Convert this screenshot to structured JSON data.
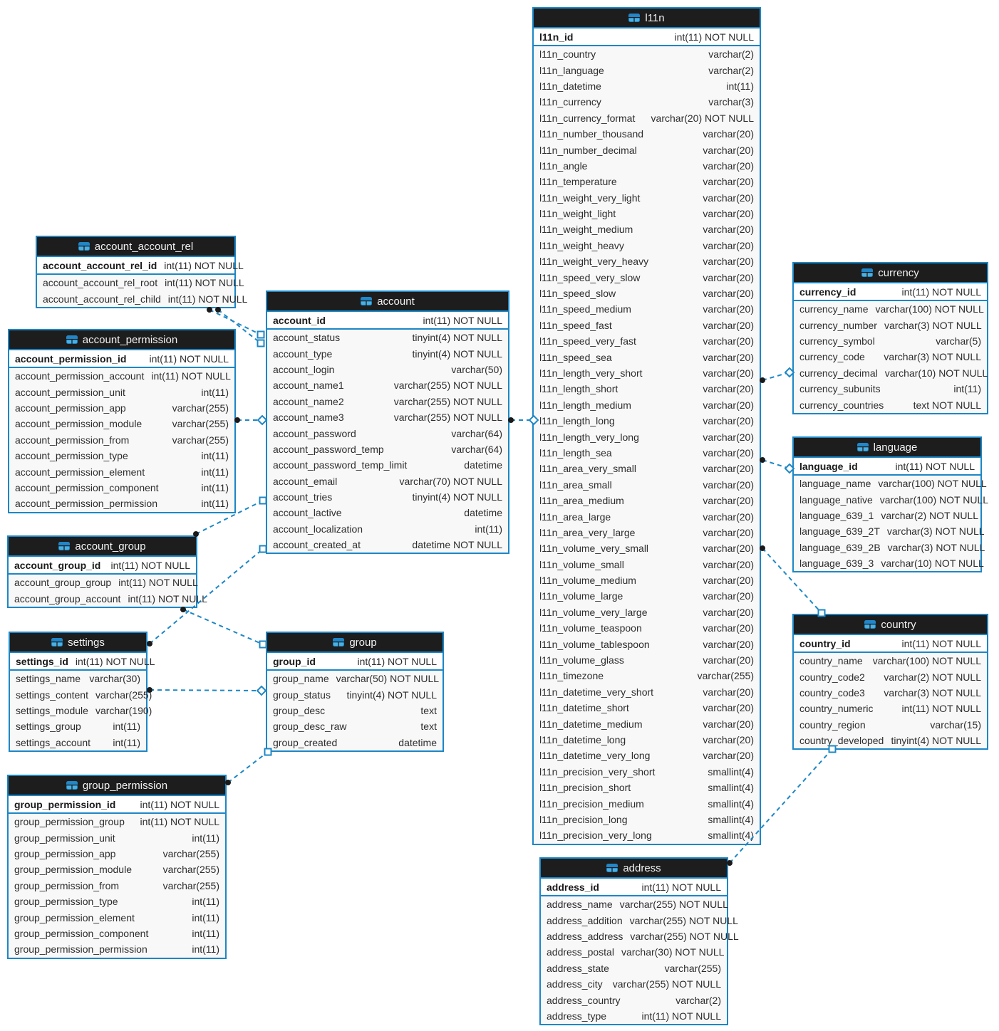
{
  "diagram": {
    "colors": {
      "accent": "#1c87c6",
      "header_bg": "#1d1d1d",
      "body_bg": "#f8f8f8",
      "pk_bg": "#ffffff",
      "text": "#2d2d2d"
    },
    "tables": [
      {
        "name": "account_account_rel",
        "pk": [
          {
            "name": "account_account_rel_id",
            "type": "int(11) NOT NULL"
          }
        ],
        "fields": [
          {
            "name": "account_account_rel_root",
            "type": "int(11) NOT NULL"
          },
          {
            "name": "account_account_rel_child",
            "type": "int(11) NOT NULL"
          }
        ]
      },
      {
        "name": "account_permission",
        "pk": [
          {
            "name": "account_permission_id",
            "type": "int(11) NOT NULL"
          }
        ],
        "fields": [
          {
            "name": "account_permission_account",
            "type": "int(11) NOT NULL"
          },
          {
            "name": "account_permission_unit",
            "type": "int(11)"
          },
          {
            "name": "account_permission_app",
            "type": "varchar(255)"
          },
          {
            "name": "account_permission_module",
            "type": "varchar(255)"
          },
          {
            "name": "account_permission_from",
            "type": "varchar(255)"
          },
          {
            "name": "account_permission_type",
            "type": "int(11)"
          },
          {
            "name": "account_permission_element",
            "type": "int(11)"
          },
          {
            "name": "account_permission_component",
            "type": "int(11)"
          },
          {
            "name": "account_permission_permission",
            "type": "int(11)"
          }
        ]
      },
      {
        "name": "account_group",
        "pk": [
          {
            "name": "account_group_id",
            "type": "int(11) NOT NULL"
          }
        ],
        "fields": [
          {
            "name": "account_group_group",
            "type": "int(11) NOT NULL"
          },
          {
            "name": "account_group_account",
            "type": "int(11) NOT NULL"
          }
        ]
      },
      {
        "name": "settings",
        "pk": [
          {
            "name": "settings_id",
            "type": "int(11) NOT NULL"
          }
        ],
        "fields": [
          {
            "name": "settings_name",
            "type": "varchar(30)"
          },
          {
            "name": "settings_content",
            "type": "varchar(255)"
          },
          {
            "name": "settings_module",
            "type": "varchar(190)"
          },
          {
            "name": "settings_group",
            "type": "int(11)"
          },
          {
            "name": "settings_account",
            "type": "int(11)"
          }
        ]
      },
      {
        "name": "group_permission",
        "pk": [
          {
            "name": "group_permission_id",
            "type": "int(11) NOT NULL"
          }
        ],
        "fields": [
          {
            "name": "group_permission_group",
            "type": "int(11) NOT NULL"
          },
          {
            "name": "group_permission_unit",
            "type": "int(11)"
          },
          {
            "name": "group_permission_app",
            "type": "varchar(255)"
          },
          {
            "name": "group_permission_module",
            "type": "varchar(255)"
          },
          {
            "name": "group_permission_from",
            "type": "varchar(255)"
          },
          {
            "name": "group_permission_type",
            "type": "int(11)"
          },
          {
            "name": "group_permission_element",
            "type": "int(11)"
          },
          {
            "name": "group_permission_component",
            "type": "int(11)"
          },
          {
            "name": "group_permission_permission",
            "type": "int(11)"
          }
        ]
      },
      {
        "name": "account",
        "pk": [
          {
            "name": "account_id",
            "type": "int(11) NOT NULL"
          }
        ],
        "fields": [
          {
            "name": "account_status",
            "type": "tinyint(4) NOT NULL"
          },
          {
            "name": "account_type",
            "type": "tinyint(4) NOT NULL"
          },
          {
            "name": "account_login",
            "type": "varchar(50)"
          },
          {
            "name": "account_name1",
            "type": "varchar(255) NOT NULL"
          },
          {
            "name": "account_name2",
            "type": "varchar(255) NOT NULL"
          },
          {
            "name": "account_name3",
            "type": "varchar(255) NOT NULL"
          },
          {
            "name": "account_password",
            "type": "varchar(64)"
          },
          {
            "name": "account_password_temp",
            "type": "varchar(64)"
          },
          {
            "name": "account_password_temp_limit",
            "type": "datetime"
          },
          {
            "name": "account_email",
            "type": "varchar(70) NOT NULL"
          },
          {
            "name": "account_tries",
            "type": "tinyint(4) NOT NULL"
          },
          {
            "name": "account_lactive",
            "type": "datetime"
          },
          {
            "name": "account_localization",
            "type": "int(11)"
          },
          {
            "name": "account_created_at",
            "type": "datetime NOT NULL"
          }
        ]
      },
      {
        "name": "group",
        "pk": [
          {
            "name": "group_id",
            "type": "int(11) NOT NULL"
          }
        ],
        "fields": [
          {
            "name": "group_name",
            "type": "varchar(50) NOT NULL"
          },
          {
            "name": "group_status",
            "type": "tinyint(4) NOT NULL"
          },
          {
            "name": "group_desc",
            "type": "text"
          },
          {
            "name": "group_desc_raw",
            "type": "text"
          },
          {
            "name": "group_created",
            "type": "datetime"
          }
        ]
      },
      {
        "name": "l11n",
        "pk": [
          {
            "name": "l11n_id",
            "type": "int(11) NOT NULL"
          }
        ],
        "fields": [
          {
            "name": "l11n_country",
            "type": "varchar(2)"
          },
          {
            "name": "l11n_language",
            "type": "varchar(2)"
          },
          {
            "name": "l11n_datetime",
            "type": "int(11)"
          },
          {
            "name": "l11n_currency",
            "type": "varchar(3)"
          },
          {
            "name": "l11n_currency_format",
            "type": "varchar(20) NOT NULL"
          },
          {
            "name": "l11n_number_thousand",
            "type": "varchar(20)"
          },
          {
            "name": "l11n_number_decimal",
            "type": "varchar(20)"
          },
          {
            "name": "l11n_angle",
            "type": "varchar(20)"
          },
          {
            "name": "l11n_temperature",
            "type": "varchar(20)"
          },
          {
            "name": "l11n_weight_very_light",
            "type": "varchar(20)"
          },
          {
            "name": "l11n_weight_light",
            "type": "varchar(20)"
          },
          {
            "name": "l11n_weight_medium",
            "type": "varchar(20)"
          },
          {
            "name": "l11n_weight_heavy",
            "type": "varchar(20)"
          },
          {
            "name": "l11n_weight_very_heavy",
            "type": "varchar(20)"
          },
          {
            "name": "l11n_speed_very_slow",
            "type": "varchar(20)"
          },
          {
            "name": "l11n_speed_slow",
            "type": "varchar(20)"
          },
          {
            "name": "l11n_speed_medium",
            "type": "varchar(20)"
          },
          {
            "name": "l11n_speed_fast",
            "type": "varchar(20)"
          },
          {
            "name": "l11n_speed_very_fast",
            "type": "varchar(20)"
          },
          {
            "name": "l11n_speed_sea",
            "type": "varchar(20)"
          },
          {
            "name": "l11n_length_very_short",
            "type": "varchar(20)"
          },
          {
            "name": "l11n_length_short",
            "type": "varchar(20)"
          },
          {
            "name": "l11n_length_medium",
            "type": "varchar(20)"
          },
          {
            "name": "l11n_length_long",
            "type": "varchar(20)"
          },
          {
            "name": "l11n_length_very_long",
            "type": "varchar(20)"
          },
          {
            "name": "l11n_length_sea",
            "type": "varchar(20)"
          },
          {
            "name": "l11n_area_very_small",
            "type": "varchar(20)"
          },
          {
            "name": "l11n_area_small",
            "type": "varchar(20)"
          },
          {
            "name": "l11n_area_medium",
            "type": "varchar(20)"
          },
          {
            "name": "l11n_area_large",
            "type": "varchar(20)"
          },
          {
            "name": "l11n_area_very_large",
            "type": "varchar(20)"
          },
          {
            "name": "l11n_volume_very_small",
            "type": "varchar(20)"
          },
          {
            "name": "l11n_volume_small",
            "type": "varchar(20)"
          },
          {
            "name": "l11n_volume_medium",
            "type": "varchar(20)"
          },
          {
            "name": "l11n_volume_large",
            "type": "varchar(20)"
          },
          {
            "name": "l11n_volume_very_large",
            "type": "varchar(20)"
          },
          {
            "name": "l11n_volume_teaspoon",
            "type": "varchar(20)"
          },
          {
            "name": "l11n_volume_tablespoon",
            "type": "varchar(20)"
          },
          {
            "name": "l11n_volume_glass",
            "type": "varchar(20)"
          },
          {
            "name": "l11n_timezone",
            "type": "varchar(255)"
          },
          {
            "name": "l11n_datetime_very_short",
            "type": "varchar(20)"
          },
          {
            "name": "l11n_datetime_short",
            "type": "varchar(20)"
          },
          {
            "name": "l11n_datetime_medium",
            "type": "varchar(20)"
          },
          {
            "name": "l11n_datetime_long",
            "type": "varchar(20)"
          },
          {
            "name": "l11n_datetime_very_long",
            "type": "varchar(20)"
          },
          {
            "name": "l11n_precision_very_short",
            "type": "smallint(4)"
          },
          {
            "name": "l11n_precision_short",
            "type": "smallint(4)"
          },
          {
            "name": "l11n_precision_medium",
            "type": "smallint(4)"
          },
          {
            "name": "l11n_precision_long",
            "type": "smallint(4)"
          },
          {
            "name": "l11n_precision_very_long",
            "type": "smallint(4)"
          }
        ]
      },
      {
        "name": "address",
        "pk": [
          {
            "name": "address_id",
            "type": "int(11) NOT NULL"
          }
        ],
        "fields": [
          {
            "name": "address_name",
            "type": "varchar(255) NOT NULL"
          },
          {
            "name": "address_addition",
            "type": "varchar(255) NOT NULL"
          },
          {
            "name": "address_address",
            "type": "varchar(255) NOT NULL"
          },
          {
            "name": "address_postal",
            "type": "varchar(30) NOT NULL"
          },
          {
            "name": "address_state",
            "type": "varchar(255)"
          },
          {
            "name": "address_city",
            "type": "varchar(255) NOT NULL"
          },
          {
            "name": "address_country",
            "type": "varchar(2)"
          },
          {
            "name": "address_type",
            "type": "int(11) NOT NULL"
          }
        ]
      },
      {
        "name": "currency",
        "pk": [
          {
            "name": "currency_id",
            "type": "int(11) NOT NULL"
          }
        ],
        "fields": [
          {
            "name": "currency_name",
            "type": "varchar(100) NOT NULL"
          },
          {
            "name": "currency_number",
            "type": "varchar(3) NOT NULL"
          },
          {
            "name": "currency_symbol",
            "type": "varchar(5)"
          },
          {
            "name": "currency_code",
            "type": "varchar(3) NOT NULL"
          },
          {
            "name": "currency_decimal",
            "type": "varchar(10) NOT NULL"
          },
          {
            "name": "currency_subunits",
            "type": "int(11)"
          },
          {
            "name": "currency_countries",
            "type": "text NOT NULL"
          }
        ]
      },
      {
        "name": "language",
        "pk": [
          {
            "name": "language_id",
            "type": "int(11) NOT NULL"
          }
        ],
        "fields": [
          {
            "name": "language_name",
            "type": "varchar(100) NOT NULL"
          },
          {
            "name": "language_native",
            "type": "varchar(100) NOT NULL"
          },
          {
            "name": "language_639_1",
            "type": "varchar(2) NOT NULL"
          },
          {
            "name": "language_639_2T",
            "type": "varchar(3) NOT NULL"
          },
          {
            "name": "language_639_2B",
            "type": "varchar(3) NOT NULL"
          },
          {
            "name": "language_639_3",
            "type": "varchar(10) NOT NULL"
          }
        ]
      },
      {
        "name": "country",
        "pk": [
          {
            "name": "country_id",
            "type": "int(11) NOT NULL"
          }
        ],
        "fields": [
          {
            "name": "country_name",
            "type": "varchar(100) NOT NULL"
          },
          {
            "name": "country_code2",
            "type": "varchar(2) NOT NULL"
          },
          {
            "name": "country_code3",
            "type": "varchar(3) NOT NULL"
          },
          {
            "name": "country_numeric",
            "type": "int(11) NOT NULL"
          },
          {
            "name": "country_region",
            "type": "varchar(15)"
          },
          {
            "name": "country_developed",
            "type": "tinyint(4) NOT NULL"
          }
        ]
      }
    ],
    "relations": [
      {
        "from": "account_account_rel",
        "to": "account"
      },
      {
        "from": "account_account_rel",
        "to": "account"
      },
      {
        "from": "account_permission",
        "to": "account"
      },
      {
        "from": "account",
        "to": "l11n"
      },
      {
        "from": "account_group",
        "to": "account"
      },
      {
        "from": "settings",
        "to": "account"
      },
      {
        "from": "account_group",
        "to": "group"
      },
      {
        "from": "settings",
        "to": "group"
      },
      {
        "from": "group_permission",
        "to": "group"
      },
      {
        "from": "l11n",
        "to": "currency"
      },
      {
        "from": "l11n",
        "to": "language"
      },
      {
        "from": "l11n",
        "to": "country"
      },
      {
        "from": "address",
        "to": "country"
      }
    ]
  }
}
